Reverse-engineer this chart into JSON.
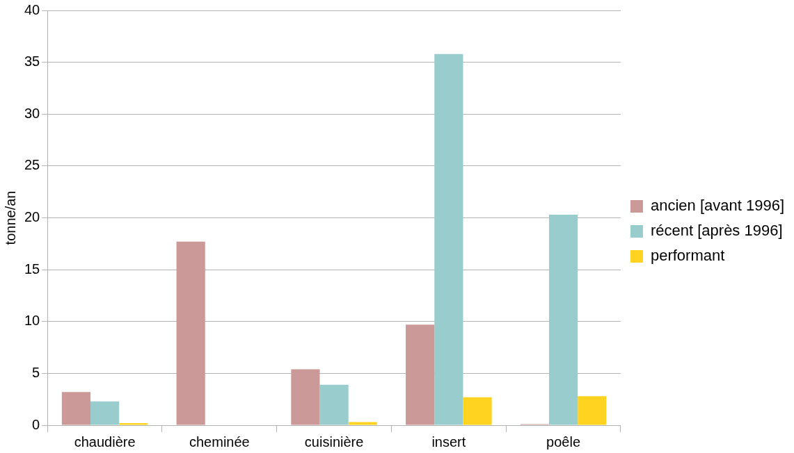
{
  "chart_data": {
    "type": "bar",
    "ylabel": "tonne/an",
    "categories": [
      "chaudière",
      "cheminée",
      "cuisinière",
      "insert",
      "poêle"
    ],
    "series": [
      {
        "name": "ancien [avant 1996]",
        "color": "#cc9999",
        "values": [
          3.2,
          17.7,
          5.4,
          9.7,
          0.1
        ]
      },
      {
        "name": "récent [après 1996]",
        "color": "#99cccc",
        "values": [
          2.3,
          0,
          3.9,
          35.8,
          20.3
        ]
      },
      {
        "name": "performant",
        "color": "#ffd320",
        "values": [
          0.2,
          0,
          0.3,
          2.7,
          2.8
        ]
      }
    ],
    "ylim": [
      0,
      40
    ],
    "yticks": [
      0,
      5,
      10,
      15,
      20,
      25,
      30,
      35,
      40
    ],
    "grid": "y",
    "legend": "right"
  }
}
